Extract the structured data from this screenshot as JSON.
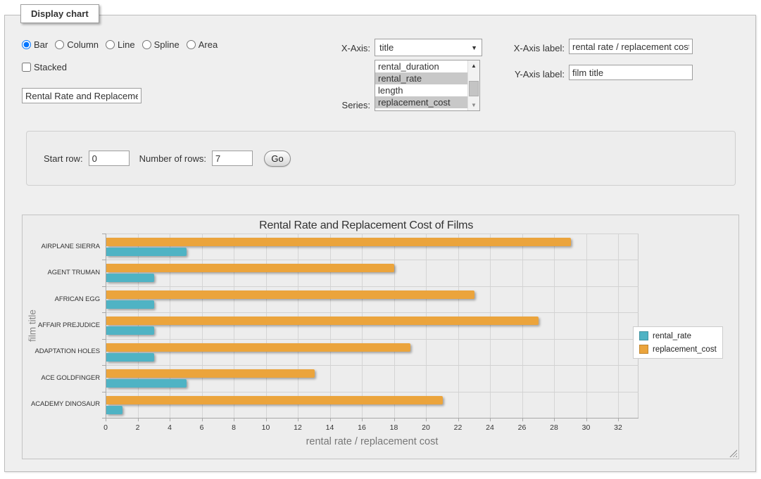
{
  "window": {
    "legend": "Display chart"
  },
  "controls": {
    "chart_types": [
      {
        "label": "Bar",
        "selected": true
      },
      {
        "label": "Column",
        "selected": false
      },
      {
        "label": "Line",
        "selected": false
      },
      {
        "label": "Spline",
        "selected": false
      },
      {
        "label": "Area",
        "selected": false
      }
    ],
    "stacked": {
      "label": "Stacked",
      "checked": false
    },
    "title_input": {
      "value": "Rental Rate and Replacement Cost of Films"
    },
    "x_axis": {
      "label": "X-Axis:",
      "value": "title"
    },
    "series_picker": {
      "label": "Series:",
      "options": [
        {
          "label": "rental_duration",
          "selected": false
        },
        {
          "label": "rental_rate",
          "selected": true
        },
        {
          "label": "length",
          "selected": false
        },
        {
          "label": "replacement_cost",
          "selected": true
        }
      ]
    },
    "x_axis_label": {
      "label": "X-Axis label:",
      "value": "rental rate / replacement cost"
    },
    "y_axis_label": {
      "label": "Y-Axis label:",
      "value": "film title"
    }
  },
  "row_controls": {
    "start_row_label": "Start row:",
    "start_row_value": "0",
    "num_rows_label": "Number of rows:",
    "num_rows_value": "7",
    "go_label": "Go"
  },
  "colors": {
    "panel_bg": "#efefef",
    "chart_bg": "#ededed",
    "selection_highlight": "#c8c8c8",
    "rental_rate": "#4FB3C4",
    "replacement_cost": "#EBA43C"
  },
  "chart_data": {
    "type": "bar",
    "orientation": "horizontal",
    "title": "Rental Rate and Replacement Cost of Films",
    "xlabel": "rental rate / replacement cost",
    "ylabel": "film title",
    "categories": [
      "AIRPLANE SIERRA",
      "AGENT TRUMAN",
      "AFRICAN EGG",
      "AFFAIR PREJUDICE",
      "ADAPTATION HOLES",
      "ACE GOLDFINGER",
      "ACADEMY DINOSAUR"
    ],
    "series": [
      {
        "name": "rental_rate",
        "color": "#4FB3C4",
        "values": [
          4.99,
          2.99,
          2.99,
          2.99,
          2.99,
          4.99,
          0.99
        ]
      },
      {
        "name": "replacement_cost",
        "color": "#EBA43C",
        "values": [
          28.99,
          17.99,
          22.99,
          26.99,
          18.99,
          12.99,
          20.99
        ]
      }
    ],
    "xlim": [
      0,
      32
    ],
    "xticks": [
      0,
      2,
      4,
      6,
      8,
      10,
      12,
      14,
      16,
      18,
      20,
      22,
      24,
      26,
      28,
      30,
      32
    ],
    "grid": true,
    "legend_position": "right"
  }
}
